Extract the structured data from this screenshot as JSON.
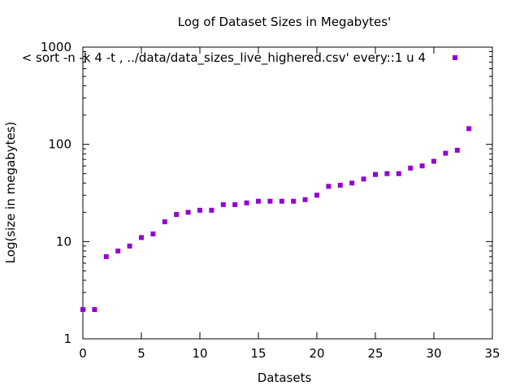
{
  "chart_data": {
    "type": "scatter",
    "title": "Log of Dataset Sizes in Megabytes'",
    "xlabel": "Datasets",
    "ylabel": "Log(size in megabytes)",
    "xlim": [
      0,
      35
    ],
    "ylim": [
      1,
      1000
    ],
    "yscale": "log",
    "x_ticks": [
      "0",
      "5",
      "10",
      "15",
      "20",
      "25",
      "30",
      "35"
    ],
    "y_ticks": [
      "1",
      "10",
      "100",
      "1000"
    ],
    "grid": false,
    "legend_position": "top-right",
    "series": [
      {
        "name": "< sort -n -k 4 -t , ../data/data_sizes_live_highered.csv' every::1 u 4",
        "color": "#9400d3",
        "points": [
          {
            "x": 0,
            "y": 2.0
          },
          {
            "x": 1,
            "y": 2.0
          },
          {
            "x": 2,
            "y": 7.0
          },
          {
            "x": 3,
            "y": 8.0
          },
          {
            "x": 4,
            "y": 9.0
          },
          {
            "x": 5,
            "y": 11.0
          },
          {
            "x": 6,
            "y": 12.0
          },
          {
            "x": 7,
            "y": 16.0
          },
          {
            "x": 8,
            "y": 19.0
          },
          {
            "x": 9,
            "y": 20.0
          },
          {
            "x": 10,
            "y": 21.0
          },
          {
            "x": 11,
            "y": 21.0
          },
          {
            "x": 12,
            "y": 24.0
          },
          {
            "x": 13,
            "y": 24.0
          },
          {
            "x": 14,
            "y": 25.0
          },
          {
            "x": 15,
            "y": 26.0
          },
          {
            "x": 16,
            "y": 26.0
          },
          {
            "x": 17,
            "y": 26.0
          },
          {
            "x": 18,
            "y": 26.0
          },
          {
            "x": 19,
            "y": 27.0
          },
          {
            "x": 20,
            "y": 30.0
          },
          {
            "x": 21,
            "y": 37.0
          },
          {
            "x": 22,
            "y": 38.0
          },
          {
            "x": 23,
            "y": 40.0
          },
          {
            "x": 24,
            "y": 44.0
          },
          {
            "x": 25,
            "y": 49.0
          },
          {
            "x": 26,
            "y": 50.0
          },
          {
            "x": 27,
            "y": 50.0
          },
          {
            "x": 28,
            "y": 57.0
          },
          {
            "x": 29,
            "y": 60.0
          },
          {
            "x": 30,
            "y": 67.0
          },
          {
            "x": 31,
            "y": 81.0
          },
          {
            "x": 32,
            "y": 87.0
          },
          {
            "x": 33,
            "y": 145.0
          }
        ]
      }
    ]
  }
}
